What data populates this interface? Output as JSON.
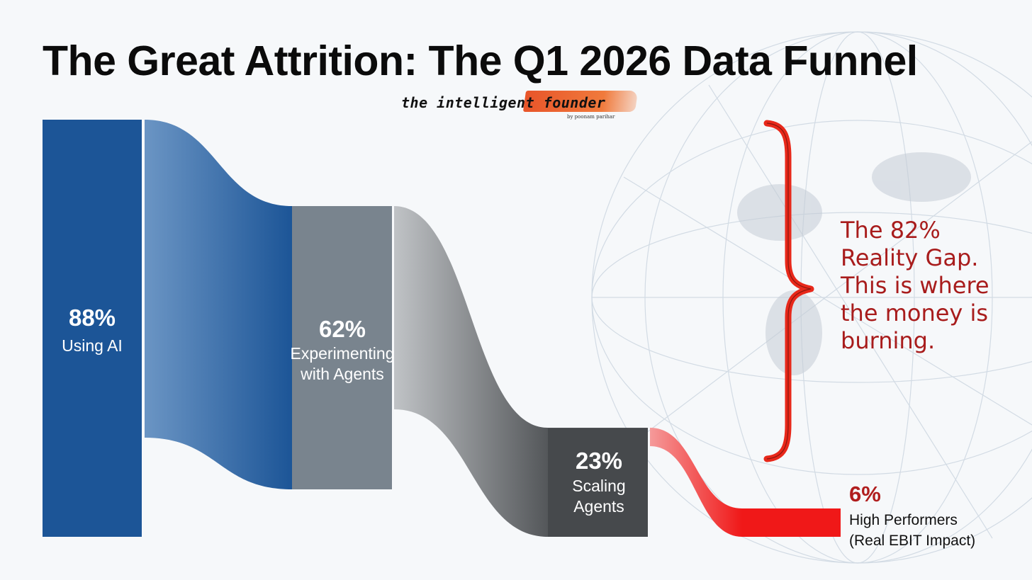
{
  "title": "The Great Attrition: The Q1 2026 Data Funnel",
  "logo": {
    "text": "the intelligent founder",
    "byline": "by poonam parihar"
  },
  "annotation": "The 82%\nReality Gap.\nThis is where\nthe money is\nburning.",
  "colors": {
    "using_ai": "#1c5597",
    "experimenting": "#79848e",
    "scaling": "#46494c",
    "high_performers": "#f01818",
    "brace": "#e8281a",
    "annotation": "#a81c1c"
  },
  "chart_data": {
    "type": "funnel",
    "title": "The Great Attrition: The Q1 2026 Data Funnel",
    "unit": "%",
    "stages": [
      {
        "value": 88,
        "value_label": "88%",
        "label_lines": [
          "Using AI"
        ],
        "color": "#1c5597"
      },
      {
        "value": 62,
        "value_label": "62%",
        "label_lines": [
          "Experimenting",
          "with Agents"
        ],
        "color": "#79848e"
      },
      {
        "value": 23,
        "value_label": "23%",
        "label_lines": [
          "Scaling",
          "Agents"
        ],
        "color": "#46494c"
      },
      {
        "value": 6,
        "value_label": "6%",
        "label_lines": [
          "High Performers",
          "(Real EBIT Impact)"
        ],
        "color": "#f01818"
      }
    ],
    "annotations": [
      {
        "text": "The 82% Reality Gap. This is where the money is burning.",
        "spans_stages": [
          1,
          3
        ]
      }
    ]
  }
}
